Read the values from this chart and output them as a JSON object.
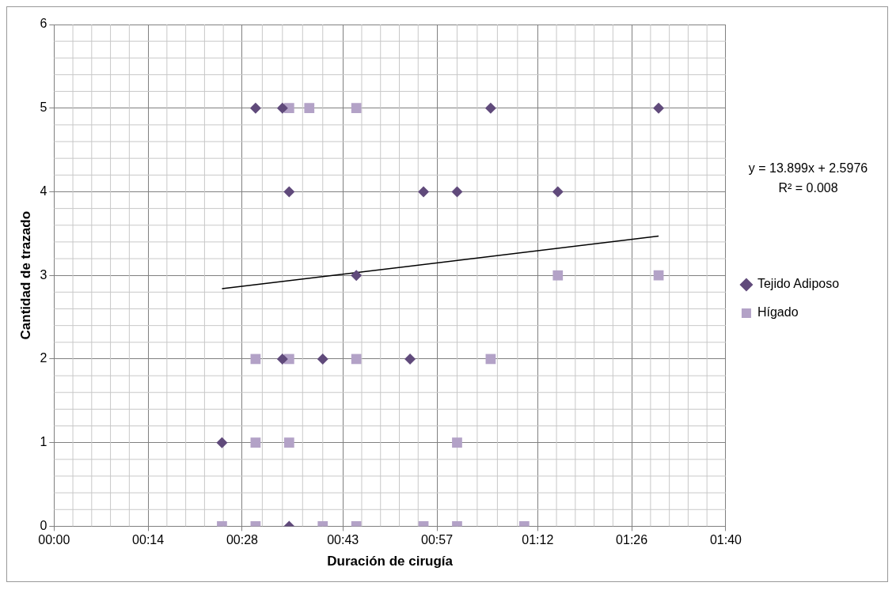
{
  "chart_data": {
    "type": "scatter",
    "xlabel": "Duración de cirugía",
    "ylabel": "Cantidad de trazado",
    "xlim": [
      0,
      100
    ],
    "xticks": [
      {
        "value": 0,
        "label": "00:00"
      },
      {
        "value": 14,
        "label": "00:14"
      },
      {
        "value": 28,
        "label": "00:28"
      },
      {
        "value": 43,
        "label": "00:43"
      },
      {
        "value": 57,
        "label": "00:57"
      },
      {
        "value": 72,
        "label": "01:12"
      },
      {
        "value": 86,
        "label": "01:26"
      },
      {
        "value": 100,
        "label": "01:40"
      }
    ],
    "ylim": [
      0,
      6
    ],
    "yticks": [
      0,
      1,
      2,
      3,
      4,
      5,
      6
    ],
    "grid": true,
    "legend": "right",
    "annotations": [
      "y = 13.899x + 2.5976",
      "R² = 0.008"
    ],
    "series": [
      {
        "name": "Tejido Adiposo",
        "color": "#604a7b",
        "marker": "diamond",
        "x": [
          30,
          34,
          65,
          90,
          35,
          55,
          60,
          75,
          45,
          34,
          40,
          53,
          25,
          35
        ],
        "values": [
          5,
          5,
          5,
          5,
          4,
          4,
          4,
          4,
          3,
          2,
          2,
          2,
          1,
          0
        ]
      },
      {
        "name": "Hígado",
        "color": "#b3a2c7",
        "marker": "square",
        "x": [
          35,
          38,
          45,
          75,
          90,
          30,
          35,
          45,
          65,
          30,
          35,
          60,
          25,
          30,
          40,
          45,
          55,
          60,
          70
        ],
        "values": [
          5,
          5,
          5,
          3,
          3,
          2,
          2,
          2,
          2,
          1,
          1,
          1,
          0,
          0,
          0,
          0,
          0,
          0,
          0
        ]
      },
      {
        "type": "line",
        "color": "#000000",
        "marker": "none",
        "x": [
          25,
          90
        ],
        "values": [
          2.84,
          3.47
        ]
      }
    ]
  }
}
